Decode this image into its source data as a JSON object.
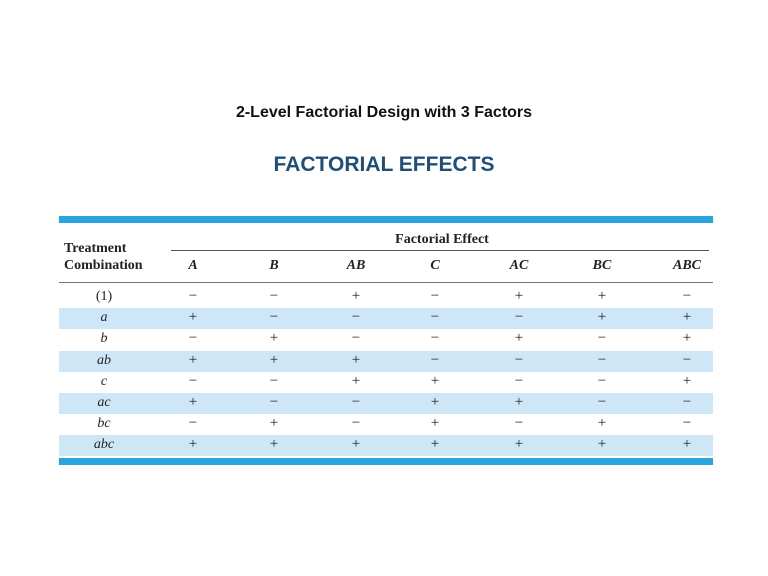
{
  "title": "2-Level Factorial Design with 3 Factors",
  "subtitle": "FACTORIAL EFFECTS",
  "table": {
    "treatment_header": [
      "Treatment",
      "Combination"
    ],
    "group_header": "Factorial Effect",
    "columns": [
      "A",
      "B",
      "AB",
      "C",
      "AC",
      "BC",
      "ABC"
    ],
    "rows": [
      {
        "label": "(1)",
        "values": [
          "−",
          "−",
          "+",
          "−",
          "+",
          "+",
          "−"
        ]
      },
      {
        "label": "a",
        "values": [
          "+",
          "−",
          "−",
          "−",
          "−",
          "+",
          "+"
        ]
      },
      {
        "label": "b",
        "values": [
          "−",
          "+",
          "−",
          "−",
          "+",
          "−",
          "+"
        ]
      },
      {
        "label": "ab",
        "values": [
          "+",
          "+",
          "+",
          "−",
          "−",
          "−",
          "−"
        ]
      },
      {
        "label": "c",
        "values": [
          "−",
          "−",
          "+",
          "+",
          "−",
          "−",
          "+"
        ]
      },
      {
        "label": "ac",
        "values": [
          "+",
          "−",
          "−",
          "+",
          "+",
          "−",
          "−"
        ]
      },
      {
        "label": "bc",
        "values": [
          "−",
          "+",
          "−",
          "+",
          "−",
          "+",
          "−"
        ]
      },
      {
        "label": "abc",
        "values": [
          "+",
          "+",
          "+",
          "+",
          "+",
          "+",
          "+"
        ]
      }
    ]
  },
  "colors": {
    "accent_bar": "#2aa4df",
    "row_shade": "#cde7f7",
    "subtitle": "#1f4e79"
  }
}
